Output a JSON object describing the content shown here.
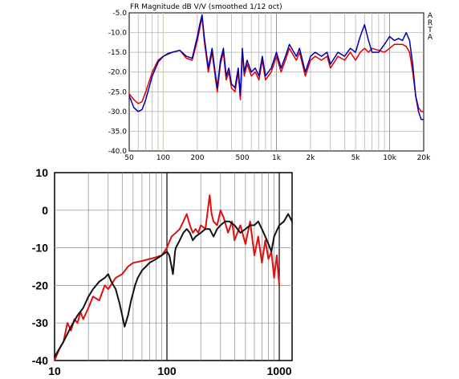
{
  "chart_data": [
    {
      "type": "line",
      "title": "FR Magnitude dB V/V (smoothed 1/12 oct)",
      "side_label": "ARTA",
      "x_scale": "log",
      "xlim": [
        50,
        20000
      ],
      "ylim": [
        -40,
        -5
      ],
      "grid": true,
      "marker_x": 100,
      "x_ticks": [
        50,
        100,
        200,
        500,
        1000,
        2000,
        5000,
        10000,
        20000
      ],
      "x_tick_labels": [
        "50",
        "100",
        "200",
        "500",
        "1k",
        "2k",
        "5k",
        "10k",
        "20k"
      ],
      "y_ticks": [
        -5,
        -10,
        -15,
        -20,
        -25,
        -30,
        -35,
        -40
      ],
      "y_tick_labels": [
        "-5.0",
        "-10.0",
        "-15.0",
        "-20.0",
        "-25.0",
        "-30.0",
        "-35.0",
        "-40.0"
      ],
      "colors": {
        "red": "#e00000",
        "blue": "#0000b0",
        "marker": "#d8e060",
        "grid": "#aaaaaa"
      },
      "series": [
        {
          "color": "#e00000",
          "x": [
            50,
            55,
            60,
            65,
            70,
            80,
            90,
            100,
            110,
            120,
            140,
            160,
            180,
            200,
            210,
            220,
            230,
            250,
            270,
            290,
            300,
            320,
            340,
            360,
            380,
            400,
            430,
            460,
            480,
            500,
            520,
            550,
            600,
            650,
            700,
            750,
            800,
            900,
            1000,
            1100,
            1200,
            1300,
            1500,
            1600,
            1800,
            2000,
            2200,
            2500,
            2800,
            3000,
            3500,
            4000,
            4500,
            5000,
            5500,
            6000,
            6500,
            7000,
            8000,
            9000,
            10000,
            11000,
            12000,
            13000,
            14000,
            15000,
            16000,
            17000,
            18000,
            19000,
            20000
          ],
          "y": [
            -25.5,
            -27,
            -28,
            -27.5,
            -25,
            -20,
            -17,
            -16,
            -15.5,
            -15,
            -14.5,
            -16.5,
            -17,
            -12,
            -9,
            -6,
            -12,
            -20,
            -15,
            -22,
            -25,
            -18,
            -15,
            -22,
            -20,
            -24,
            -25,
            -20,
            -27,
            -15,
            -21,
            -18,
            -21,
            -20,
            -22,
            -17,
            -22,
            -20,
            -16,
            -20,
            -17,
            -14,
            -17,
            -15,
            -21,
            -17,
            -16,
            -17,
            -16,
            -19,
            -16,
            -17,
            -15,
            -17,
            -15,
            -14,
            -15,
            -14,
            -14.5,
            -15,
            -14,
            -13,
            -13,
            -13,
            -13.5,
            -15,
            -20,
            -26,
            -29,
            -30,
            -30
          ]
        },
        {
          "color": "#0000b0",
          "x": [
            50,
            55,
            60,
            65,
            70,
            80,
            90,
            100,
            110,
            120,
            140,
            160,
            180,
            200,
            210,
            220,
            230,
            250,
            270,
            290,
            300,
            320,
            340,
            360,
            380,
            400,
            430,
            460,
            480,
            500,
            520,
            550,
            600,
            650,
            700,
            750,
            800,
            900,
            1000,
            1100,
            1200,
            1300,
            1500,
            1600,
            1800,
            2000,
            2200,
            2500,
            2800,
            3000,
            3500,
            4000,
            4500,
            5000,
            5500,
            6000,
            6500,
            7000,
            8000,
            9000,
            10000,
            11000,
            12000,
            13000,
            14000,
            15000,
            16000,
            17000,
            18000,
            19000,
            20000
          ],
          "y": [
            -26,
            -29,
            -30,
            -29.5,
            -27,
            -21,
            -17.5,
            -16,
            -15.3,
            -15,
            -14.5,
            -16,
            -16.5,
            -11,
            -8,
            -5.5,
            -11,
            -19,
            -14,
            -21,
            -24,
            -17,
            -14,
            -21,
            -19,
            -23,
            -24,
            -19,
            -26,
            -14,
            -20,
            -17,
            -20,
            -19,
            -21,
            -16,
            -21,
            -19,
            -15,
            -19,
            -16,
            -13,
            -16,
            -14,
            -20,
            -16,
            -15,
            -16,
            -15,
            -18,
            -15,
            -16,
            -14,
            -15,
            -11,
            -8,
            -12,
            -15,
            -15,
            -13,
            -11,
            -12,
            -11.5,
            -12,
            -10,
            -12,
            -18,
            -26,
            -30,
            -32,
            -32
          ]
        }
      ]
    },
    {
      "type": "line",
      "x_scale": "log",
      "xlim": [
        10,
        1300
      ],
      "ylim": [
        -40,
        10
      ],
      "grid": true,
      "x_ticks": [
        10,
        100,
        1000
      ],
      "x_tick_labels": [
        "10",
        "100",
        "1000"
      ],
      "y_ticks": [
        10,
        0,
        -10,
        -20,
        -30,
        -40
      ],
      "y_tick_labels": [
        "10",
        "0",
        "-10",
        "-20",
        "-30",
        "-40"
      ],
      "colors": {
        "red": "#e01010",
        "black": "#111111",
        "grid": "#888888"
      },
      "series": [
        {
          "color": "#e01010",
          "x": [
            10,
            11,
            12,
            13,
            14,
            15,
            16,
            17,
            18,
            20,
            22,
            25,
            28,
            30,
            35,
            40,
            45,
            50,
            60,
            70,
            80,
            90,
            100,
            110,
            120,
            130,
            140,
            150,
            160,
            170,
            180,
            190,
            200,
            220,
            240,
            250,
            260,
            280,
            300,
            320,
            350,
            380,
            400,
            450,
            500,
            550,
            600,
            650,
            700,
            750,
            800,
            850,
            900,
            950,
            1000
          ],
          "y": [
            -40,
            -37,
            -35,
            -30,
            -32,
            -29,
            -30,
            -27,
            -29,
            -26,
            -23,
            -24,
            -20,
            -21,
            -18,
            -17,
            -15,
            -14,
            -13.5,
            -13,
            -12.5,
            -12,
            -10,
            -7,
            -6,
            -5,
            -3,
            -1,
            -4,
            -6,
            -5,
            -6,
            -4,
            -5,
            4,
            -1,
            -3,
            -4,
            0,
            -2,
            -6,
            -3,
            -8,
            -4,
            -9,
            -3,
            -12,
            -7,
            -14,
            -8,
            -13,
            -11,
            -18,
            -12,
            -20
          ]
        },
        {
          "color": "#111111",
          "x": [
            10,
            12,
            14,
            16,
            18,
            20,
            22,
            25,
            28,
            30,
            32,
            35,
            38,
            40,
            42,
            45,
            48,
            50,
            52,
            55,
            60,
            65,
            70,
            80,
            90,
            100,
            105,
            110,
            113,
            115,
            118,
            120,
            125,
            130,
            140,
            150,
            160,
            170,
            180,
            200,
            220,
            240,
            260,
            280,
            300,
            330,
            360,
            400,
            450,
            500,
            550,
            600,
            650,
            700,
            750,
            800,
            850,
            900,
            1000,
            1100,
            1200,
            1300
          ],
          "y": [
            -39,
            -35,
            -31,
            -28,
            -26,
            -23,
            -21,
            -19,
            -18,
            -17,
            -19,
            -21,
            -25,
            -28,
            -31,
            -28,
            -24,
            -22,
            -20,
            -18,
            -16,
            -15,
            -14,
            -13,
            -12,
            -11,
            -12,
            -15,
            -17,
            -15,
            -11,
            -10,
            -9,
            -8,
            -6,
            -5,
            -6,
            -8,
            -7,
            -6,
            -5,
            -5,
            -7,
            -5,
            -4,
            -3,
            -3,
            -4,
            -6,
            -5,
            -4,
            -4,
            -3,
            -5,
            -7,
            -9,
            -11,
            -7,
            -4,
            -3,
            -1,
            -3
          ]
        }
      ]
    }
  ]
}
